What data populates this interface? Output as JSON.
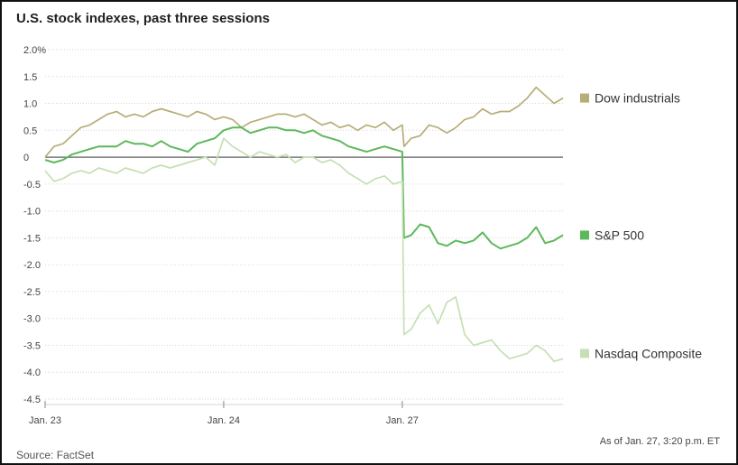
{
  "title": "U.S. stock indexes, past three sessions",
  "footnote": "As of Jan. 27, 3:20 p.m. ET",
  "source": "Source: FactSet",
  "colors": {
    "dow": "#b8ad78",
    "sp500": "#5cb85c",
    "nasdaq": "#c5e0b4",
    "grid": "#d6d6d6",
    "zero_line": "#777777"
  },
  "chart_data": {
    "type": "line",
    "title": "U.S. stock indexes, past three sessions",
    "ylabel": "",
    "xlabel": "",
    "ylim": [
      -4.5,
      2.0
    ],
    "ytick_values": [
      2.0,
      1.5,
      1.0,
      0.5,
      0,
      -0.5,
      -1.0,
      -1.5,
      -2.0,
      -2.5,
      -3.0,
      -3.5,
      -4.0,
      -4.5
    ],
    "ytick_labels": [
      "2.0%",
      "1.5",
      "1.0",
      "0.5",
      "0",
      "-0.5",
      "-1.0",
      "-1.5",
      "-2.0",
      "-2.5",
      "-3.0",
      "-3.5",
      "-4.0",
      "-4.5"
    ],
    "xlim": [
      0,
      2.9
    ],
    "xticks": [
      {
        "x": 0,
        "label": "Jan. 23"
      },
      {
        "x": 1,
        "label": "Jan. 24"
      },
      {
        "x": 2,
        "label": "Jan. 27"
      }
    ],
    "x": [
      0,
      0.05,
      0.1,
      0.15,
      0.2,
      0.25,
      0.3,
      0.35,
      0.4,
      0.45,
      0.5,
      0.55,
      0.6,
      0.65,
      0.7,
      0.75,
      0.8,
      0.85,
      0.9,
      0.95,
      1.0,
      1.05,
      1.1,
      1.15,
      1.2,
      1.25,
      1.3,
      1.35,
      1.4,
      1.45,
      1.5,
      1.55,
      1.6,
      1.65,
      1.7,
      1.75,
      1.8,
      1.85,
      1.9,
      1.95,
      2.0,
      2.01,
      2.05,
      2.1,
      2.15,
      2.2,
      2.25,
      2.3,
      2.35,
      2.4,
      2.45,
      2.5,
      2.55,
      2.6,
      2.65,
      2.7,
      2.75,
      2.8,
      2.85,
      2.9
    ],
    "series": [
      {
        "name": "Dow industrials",
        "values": [
          0.0,
          0.2,
          0.25,
          0.4,
          0.55,
          0.6,
          0.7,
          0.8,
          0.85,
          0.75,
          0.8,
          0.75,
          0.85,
          0.9,
          0.85,
          0.8,
          0.75,
          0.85,
          0.8,
          0.7,
          0.75,
          0.7,
          0.55,
          0.65,
          0.7,
          0.75,
          0.8,
          0.8,
          0.75,
          0.8,
          0.7,
          0.6,
          0.65,
          0.55,
          0.6,
          0.5,
          0.6,
          0.55,
          0.65,
          0.5,
          0.6,
          0.2,
          0.35,
          0.4,
          0.6,
          0.55,
          0.45,
          0.55,
          0.7,
          0.75,
          0.9,
          0.8,
          0.85,
          0.85,
          0.95,
          1.1,
          1.3,
          1.15,
          1.0,
          1.1
        ]
      },
      {
        "name": "S&P 500",
        "values": [
          -0.05,
          -0.1,
          -0.05,
          0.05,
          0.1,
          0.15,
          0.2,
          0.2,
          0.2,
          0.3,
          0.25,
          0.25,
          0.2,
          0.3,
          0.2,
          0.15,
          0.1,
          0.25,
          0.3,
          0.35,
          0.5,
          0.55,
          0.55,
          0.45,
          0.5,
          0.55,
          0.55,
          0.5,
          0.5,
          0.45,
          0.5,
          0.4,
          0.35,
          0.3,
          0.2,
          0.15,
          0.1,
          0.15,
          0.2,
          0.15,
          0.1,
          -1.5,
          -1.45,
          -1.25,
          -1.3,
          -1.6,
          -1.65,
          -1.55,
          -1.6,
          -1.55,
          -1.4,
          -1.6,
          -1.7,
          -1.65,
          -1.6,
          -1.5,
          -1.3,
          -1.6,
          -1.55,
          -1.45
        ]
      },
      {
        "name": "Nasdaq Composite",
        "values": [
          -0.25,
          -0.45,
          -0.4,
          -0.3,
          -0.25,
          -0.3,
          -0.2,
          -0.25,
          -0.3,
          -0.2,
          -0.25,
          -0.3,
          -0.2,
          -0.15,
          -0.2,
          -0.15,
          -0.1,
          -0.05,
          0.0,
          -0.15,
          0.35,
          0.2,
          0.1,
          0.0,
          0.1,
          0.05,
          0.0,
          0.05,
          -0.1,
          0.0,
          0.0,
          -0.1,
          -0.05,
          -0.15,
          -0.3,
          -0.4,
          -0.5,
          -0.4,
          -0.35,
          -0.5,
          -0.45,
          -3.3,
          -3.2,
          -2.9,
          -2.75,
          -3.1,
          -2.7,
          -2.6,
          -3.3,
          -3.5,
          -3.45,
          -3.4,
          -3.6,
          -3.75,
          -3.7,
          -3.65,
          -3.5,
          -3.6,
          -3.8,
          -3.75
        ]
      }
    ],
    "legend": [
      {
        "label": "Dow industrials",
        "at_value": 1.1
      },
      {
        "label": "S&P 500",
        "at_value": -1.45
      },
      {
        "label": "Nasdaq Composite",
        "at_value": -3.65
      }
    ],
    "grid": true,
    "legend_position": "right"
  }
}
